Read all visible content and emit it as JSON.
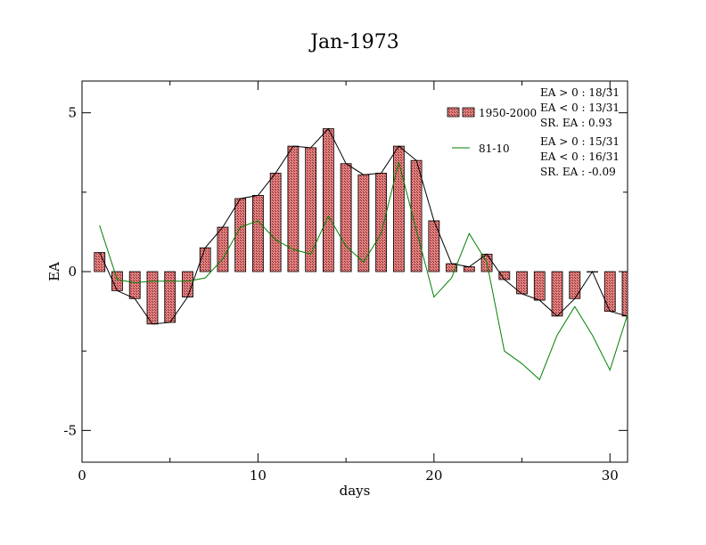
{
  "chart_data": {
    "type": "bar",
    "title": "Jan-1973",
    "xlabel": "days",
    "ylabel": "EA",
    "xlim": [
      0,
      31
    ],
    "ylim": [
      -6,
      6
    ],
    "x_ticks": [
      0,
      10,
      20,
      30
    ],
    "y_ticks": [
      -5,
      0,
      5
    ],
    "grid": false,
    "x": [
      1,
      2,
      3,
      4,
      5,
      6,
      7,
      8,
      9,
      10,
      11,
      12,
      13,
      14,
      15,
      16,
      17,
      18,
      19,
      20,
      21,
      22,
      23,
      24,
      25,
      26,
      27,
      28,
      29,
      30,
      31
    ],
    "series": [
      {
        "name": "1950-2000",
        "kind": "bar+line",
        "values": [
          0.6,
          -0.6,
          -0.85,
          -1.65,
          -1.6,
          -0.8,
          0.75,
          1.4,
          2.3,
          2.4,
          3.1,
          3.95,
          3.9,
          4.5,
          3.4,
          3.05,
          3.1,
          3.95,
          3.5,
          1.6,
          0.25,
          0.15,
          0.55,
          -0.25,
          -0.7,
          -0.9,
          -1.4,
          -0.85,
          0.0,
          -1.25,
          -1.4
        ]
      },
      {
        "name": "81-10",
        "kind": "line",
        "color": "#008000",
        "values": [
          1.45,
          -0.25,
          -0.35,
          -0.3,
          -0.3,
          -0.3,
          -0.2,
          0.4,
          1.4,
          1.6,
          1.0,
          0.7,
          0.55,
          1.75,
          0.8,
          0.3,
          1.2,
          3.45,
          1.3,
          -0.8,
          -0.2,
          1.2,
          0.3,
          -2.5,
          -2.9,
          -3.4,
          -2.0,
          -1.1,
          -2.0,
          -3.1,
          -1.35
        ]
      }
    ],
    "legend": {
      "placement": "top-right",
      "entries": [
        {
          "label": "1950-2000",
          "stats": [
            "EA > 0 : 18/31",
            "EA < 0 : 13/31",
            "SR. EA :  0.93"
          ]
        },
        {
          "label": "81-10",
          "stats": [
            "EA > 0 : 15/31",
            "EA < 0 : 16/31",
            "SR. EA : -0.09"
          ]
        }
      ]
    },
    "colors": {
      "bar_fill": "#e07070",
      "bar_stroke": "#000000",
      "line1": "#000000",
      "line2": "#008000"
    }
  }
}
